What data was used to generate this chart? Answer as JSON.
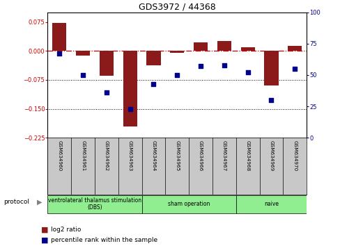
{
  "title": "GDS3972 / 44368",
  "samples": [
    "GSM634960",
    "GSM634961",
    "GSM634962",
    "GSM634963",
    "GSM634964",
    "GSM634965",
    "GSM634966",
    "GSM634967",
    "GSM634968",
    "GSM634969",
    "GSM634970"
  ],
  "log2_ratio": [
    0.073,
    -0.012,
    -0.065,
    -0.195,
    -0.038,
    -0.005,
    0.022,
    0.025,
    0.01,
    -0.09,
    0.013
  ],
  "percentile_rank": [
    67,
    50,
    36,
    23,
    43,
    50,
    57,
    58,
    52,
    30,
    55
  ],
  "bar_color": "#8B1A1A",
  "dot_color": "#00008B",
  "hline_color": "#CC0000",
  "grid_color": "#000000",
  "sample_box_color": "#C8C8C8",
  "protocol_groups": [
    {
      "label": "ventrolateral thalamus stimulation\n(DBS)",
      "start": 0,
      "end": 3,
      "color": "#90EE90"
    },
    {
      "label": "sham operation",
      "start": 4,
      "end": 7,
      "color": "#90EE90"
    },
    {
      "label": "naive",
      "start": 8,
      "end": 10,
      "color": "#90EE90"
    }
  ],
  "ylim_left": [
    -0.225,
    0.1
  ],
  "ylim_right": [
    0,
    100
  ],
  "yticks_left": [
    0.075,
    0,
    -0.075,
    -0.15,
    -0.225
  ],
  "yticks_right": [
    100,
    75,
    50,
    25,
    0
  ],
  "legend_labels": [
    "log2 ratio",
    "percentile rank within the sample"
  ],
  "legend_colors": [
    "#8B1A1A",
    "#00008B"
  ]
}
